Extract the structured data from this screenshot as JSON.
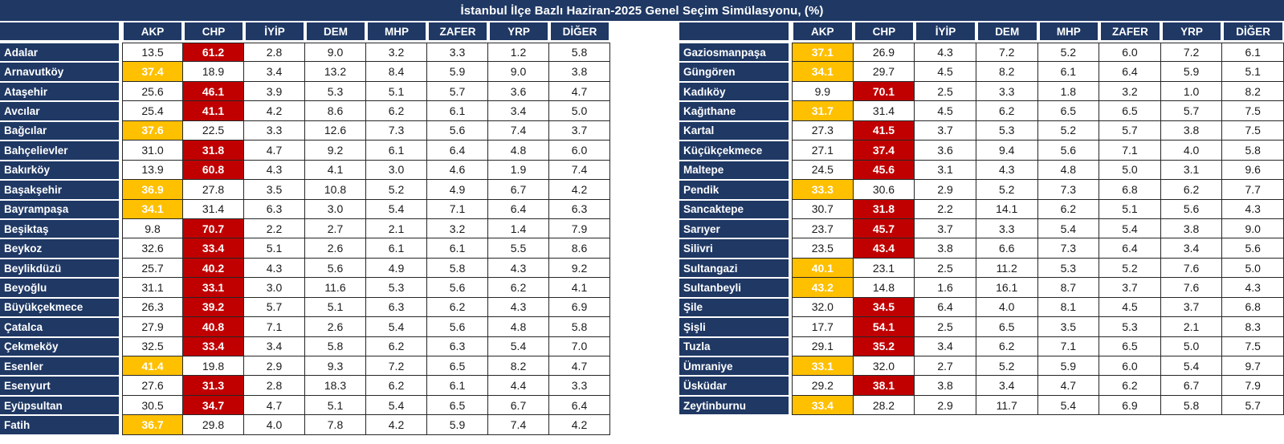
{
  "title": "İstanbul İlçe Bazlı Haziran-2025 Genel Seçim Simülasyonu, (%)",
  "colors": {
    "header_navy": "#1F3864",
    "akp_win_fill": "#FFC000",
    "chp_win_fill": "#C00000",
    "grid_line": "#262626",
    "cell_text": "#1a1a1a",
    "header_text": "#ffffff"
  },
  "chart_data": {
    "type": "table",
    "title": "İstanbul İlçe Bazlı Haziran-2025 Genel Seçim Simülasyonu, (%)",
    "unit": "%",
    "columns": [
      "AKP",
      "CHP",
      "İYİP",
      "DEM",
      "MHP",
      "ZAFER",
      "YRP",
      "DİĞER"
    ],
    "highlight_rule": "Row maximum is highlighted: AKP win = yellow #FFC000, CHP win = red #C00000, white bold text",
    "tables": [
      {
        "rows": [
          {
            "district": "Adalar",
            "values": [
              13.5,
              61.2,
              2.8,
              9.0,
              3.2,
              3.3,
              1.2,
              5.8
            ]
          },
          {
            "district": "Arnavutköy",
            "values": [
              37.4,
              18.9,
              3.4,
              13.2,
              8.4,
              5.9,
              9.0,
              3.8
            ]
          },
          {
            "district": "Ataşehir",
            "values": [
              25.6,
              46.1,
              3.9,
              5.3,
              5.1,
              5.7,
              3.6,
              4.7
            ]
          },
          {
            "district": "Avcılar",
            "values": [
              25.4,
              41.1,
              4.2,
              8.6,
              6.2,
              6.1,
              3.4,
              5.0
            ]
          },
          {
            "district": "Bağcılar",
            "values": [
              37.6,
              22.5,
              3.3,
              12.6,
              7.3,
              5.6,
              7.4,
              3.7
            ]
          },
          {
            "district": "Bahçelievler",
            "values": [
              31.0,
              31.8,
              4.7,
              9.2,
              6.1,
              6.4,
              4.8,
              6.0
            ]
          },
          {
            "district": "Bakırköy",
            "values": [
              13.9,
              60.8,
              4.3,
              4.1,
              3.0,
              4.6,
              1.9,
              7.4
            ]
          },
          {
            "district": "Başakşehir",
            "values": [
              36.9,
              27.8,
              3.5,
              10.8,
              5.2,
              4.9,
              6.7,
              4.2
            ]
          },
          {
            "district": "Bayrampaşa",
            "values": [
              34.1,
              31.4,
              6.3,
              3.0,
              5.4,
              7.1,
              6.4,
              6.3
            ]
          },
          {
            "district": "Beşiktaş",
            "values": [
              9.8,
              70.7,
              2.2,
              2.7,
              2.1,
              3.2,
              1.4,
              7.9
            ]
          },
          {
            "district": "Beykoz",
            "values": [
              32.6,
              33.4,
              5.1,
              2.6,
              6.1,
              6.1,
              5.5,
              8.6
            ]
          },
          {
            "district": "Beylikdüzü",
            "values": [
              25.7,
              40.2,
              4.3,
              5.6,
              4.9,
              5.8,
              4.3,
              9.2
            ]
          },
          {
            "district": "Beyoğlu",
            "values": [
              31.1,
              33.1,
              3.0,
              11.6,
              5.3,
              5.6,
              6.2,
              4.1
            ]
          },
          {
            "district": "Büyükçekmece",
            "values": [
              26.3,
              39.2,
              5.7,
              5.1,
              6.3,
              6.2,
              4.3,
              6.9
            ]
          },
          {
            "district": "Çatalca",
            "values": [
              27.9,
              40.8,
              7.1,
              2.6,
              5.4,
              5.6,
              4.8,
              5.8
            ]
          },
          {
            "district": "Çekmeköy",
            "values": [
              32.5,
              33.4,
              3.4,
              5.8,
              6.2,
              6.3,
              5.4,
              7.0
            ]
          },
          {
            "district": "Esenler",
            "values": [
              41.4,
              19.8,
              2.9,
              9.3,
              7.2,
              6.5,
              8.2,
              4.7
            ]
          },
          {
            "district": "Esenyurt",
            "values": [
              27.6,
              31.3,
              2.8,
              18.3,
              6.2,
              6.1,
              4.4,
              3.3
            ]
          },
          {
            "district": "Eyüpsultan",
            "values": [
              30.5,
              34.7,
              4.7,
              5.1,
              5.4,
              6.5,
              6.7,
              6.4
            ]
          },
          {
            "district": "Fatih",
            "values": [
              36.7,
              29.8,
              4.0,
              7.8,
              4.2,
              5.9,
              7.4,
              4.2
            ]
          }
        ]
      },
      {
        "rows": [
          {
            "district": "Gaziosmanpaşa",
            "values": [
              37.1,
              26.9,
              4.3,
              7.2,
              5.2,
              6.0,
              7.2,
              6.1
            ]
          },
          {
            "district": "Güngören",
            "values": [
              34.1,
              29.7,
              4.5,
              8.2,
              6.1,
              6.4,
              5.9,
              5.1
            ]
          },
          {
            "district": "Kadıköy",
            "values": [
              9.9,
              70.1,
              2.5,
              3.3,
              1.8,
              3.2,
              1.0,
              8.2
            ]
          },
          {
            "district": "Kağıthane",
            "values": [
              31.7,
              31.4,
              4.5,
              6.2,
              6.5,
              6.5,
              5.7,
              7.5
            ]
          },
          {
            "district": "Kartal",
            "values": [
              27.3,
              41.5,
              3.7,
              5.3,
              5.2,
              5.7,
              3.8,
              7.5
            ]
          },
          {
            "district": "Küçükçekmece",
            "values": [
              27.1,
              37.4,
              3.6,
              9.4,
              5.6,
              7.1,
              4.0,
              5.8
            ]
          },
          {
            "district": "Maltepe",
            "values": [
              24.5,
              45.6,
              3.1,
              4.3,
              4.8,
              5.0,
              3.1,
              9.6
            ]
          },
          {
            "district": "Pendik",
            "values": [
              33.3,
              30.6,
              2.9,
              5.2,
              7.3,
              6.8,
              6.2,
              7.7
            ]
          },
          {
            "district": "Sancaktepe",
            "values": [
              30.7,
              31.8,
              2.2,
              14.1,
              6.2,
              5.1,
              5.6,
              4.3
            ]
          },
          {
            "district": "Sarıyer",
            "values": [
              23.7,
              45.7,
              3.7,
              3.3,
              5.4,
              5.4,
              3.8,
              9.0
            ]
          },
          {
            "district": "Silivri",
            "values": [
              23.5,
              43.4,
              3.8,
              6.6,
              7.3,
              6.4,
              3.4,
              5.6
            ]
          },
          {
            "district": "Sultangazi",
            "values": [
              40.1,
              23.1,
              2.5,
              11.2,
              5.3,
              5.2,
              7.6,
              5.0
            ]
          },
          {
            "district": "Sultanbeyli",
            "values": [
              43.2,
              14.8,
              1.6,
              16.1,
              8.7,
              3.7,
              7.6,
              4.3
            ]
          },
          {
            "district": "Şile",
            "values": [
              32.0,
              34.5,
              6.4,
              4.0,
              8.1,
              4.5,
              3.7,
              6.8
            ]
          },
          {
            "district": "Şişli",
            "values": [
              17.7,
              54.1,
              2.5,
              6.5,
              3.5,
              5.3,
              2.1,
              8.3
            ]
          },
          {
            "district": "Tuzla",
            "values": [
              29.1,
              35.2,
              3.4,
              6.2,
              7.1,
              6.5,
              5.0,
              7.5
            ]
          },
          {
            "district": "Ümraniye",
            "values": [
              33.1,
              32.0,
              2.7,
              5.2,
              5.9,
              6.0,
              5.4,
              9.7
            ]
          },
          {
            "district": "Üsküdar",
            "values": [
              29.2,
              38.1,
              3.8,
              3.4,
              4.7,
              6.2,
              6.7,
              7.9
            ]
          },
          {
            "district": "Zeytinburnu",
            "values": [
              33.4,
              28.2,
              2.9,
              11.7,
              5.4,
              6.9,
              5.8,
              5.7
            ]
          }
        ]
      }
    ]
  }
}
